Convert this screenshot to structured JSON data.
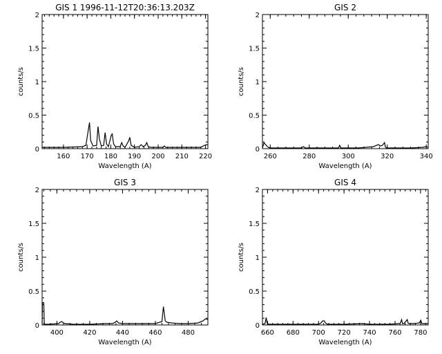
{
  "chart_data": [
    {
      "type": "line",
      "title": "GIS 1 1996-11-12T20:36:13.203Z",
      "xlabel": "Wavelength (A)",
      "ylabel": "counts/s",
      "xlim": [
        151,
        221
      ],
      "ylim": [
        0,
        2
      ],
      "xticks": [
        160,
        170,
        180,
        190,
        200,
        210,
        220
      ],
      "yticks": [
        0,
        0.5,
        1,
        1.5,
        2
      ],
      "x": [
        151,
        160,
        168,
        169.5,
        170.5,
        171.0,
        171.5,
        172.5,
        174,
        174.6,
        175.2,
        176,
        177,
        177.6,
        178.2,
        179,
        180.2,
        180.6,
        181.2,
        182,
        184,
        184.6,
        185.2,
        186,
        187.6,
        188.0,
        188.6,
        190,
        192,
        192.8,
        193.6,
        194.6,
        195.2,
        195.8,
        197,
        202,
        202.6,
        203.2,
        206,
        210,
        214,
        218,
        219.5,
        221
      ],
      "y": [
        0.02,
        0.02,
        0.03,
        0.05,
        0.28,
        0.39,
        0.12,
        0.04,
        0.05,
        0.33,
        0.14,
        0.04,
        0.05,
        0.24,
        0.07,
        0.03,
        0.2,
        0.22,
        0.07,
        0.03,
        0.03,
        0.09,
        0.04,
        0.02,
        0.12,
        0.17,
        0.05,
        0.02,
        0.03,
        0.06,
        0.03,
        0.05,
        0.09,
        0.03,
        0.02,
        0.02,
        0.04,
        0.02,
        0.02,
        0.02,
        0.02,
        0.02,
        0.05,
        0.06
      ]
    },
    {
      "type": "line",
      "title": "GIS 2",
      "xlabel": "Wavelength (A)",
      "ylabel": "counts/s",
      "xlim": [
        256,
        341
      ],
      "ylim": [
        0,
        2
      ],
      "xticks": [
        260,
        280,
        300,
        320,
        340
      ],
      "yticks": [
        0,
        0.5,
        1,
        1.5,
        2
      ],
      "x": [
        256,
        256.8,
        257.3,
        258.2,
        259,
        260,
        268,
        276,
        277,
        278,
        286,
        295,
        295.6,
        296.2,
        300,
        305,
        313,
        314.5,
        315.5,
        316.5,
        317.5,
        318.6,
        319.0,
        319.5,
        325,
        332,
        338,
        340,
        341
      ],
      "y": [
        0.01,
        0.09,
        0.07,
        0.04,
        0.02,
        0.01,
        0.01,
        0.01,
        0.03,
        0.01,
        0.01,
        0.01,
        0.05,
        0.01,
        0.01,
        0.01,
        0.03,
        0.05,
        0.06,
        0.04,
        0.05,
        0.09,
        0.03,
        0.01,
        0.01,
        0.01,
        0.02,
        0.03,
        0.02
      ]
    },
    {
      "type": "line",
      "title": "GIS 3",
      "xlabel": "Wavelength (A)",
      "ylabel": "counts/s",
      "xlim": [
        391,
        492
      ],
      "ylim": [
        0,
        2
      ],
      "xticks": [
        400,
        420,
        440,
        460,
        480
      ],
      "yticks": [
        0,
        0.5,
        1,
        1.5,
        2
      ],
      "x": [
        391,
        391.2,
        392.0,
        392.3,
        395,
        401,
        402,
        403,
        404,
        405,
        410,
        420,
        430,
        434,
        435.5,
        436.5,
        437.5,
        440,
        450,
        455,
        460,
        464,
        464.9,
        465.4,
        466,
        467,
        470,
        475,
        480,
        486,
        489,
        490.5,
        492
      ],
      "y": [
        0.0,
        0.33,
        0.33,
        0.01,
        0.01,
        0.02,
        0.04,
        0.05,
        0.03,
        0.02,
        0.01,
        0.01,
        0.02,
        0.02,
        0.04,
        0.06,
        0.03,
        0.02,
        0.02,
        0.02,
        0.02,
        0.05,
        0.27,
        0.18,
        0.06,
        0.04,
        0.03,
        0.02,
        0.02,
        0.03,
        0.06,
        0.09,
        0.08
      ]
    },
    {
      "type": "line",
      "title": "GIS 4",
      "xlabel": "Wavelength (A)",
      "ylabel": "counts/s",
      "xlim": [
        656,
        786
      ],
      "ylim": [
        0,
        2
      ],
      "xticks": [
        660,
        680,
        700,
        720,
        740,
        760,
        780
      ],
      "yticks": [
        0,
        0.5,
        1,
        1.5,
        2
      ],
      "x": [
        656,
        658,
        659,
        659.6,
        661,
        670,
        685,
        700,
        702,
        703.2,
        704.6,
        705.4,
        707,
        720,
        734,
        740,
        745,
        755,
        764,
        765.2,
        765.8,
        767,
        769.6,
        770.2,
        771,
        775,
        779,
        780.2,
        781,
        786
      ],
      "y": [
        0.01,
        0.02,
        0.11,
        0.03,
        0.01,
        0.01,
        0.01,
        0.01,
        0.03,
        0.06,
        0.06,
        0.03,
        0.01,
        0.01,
        0.02,
        0.01,
        0.01,
        0.01,
        0.02,
        0.08,
        0.02,
        0.02,
        0.08,
        0.03,
        0.02,
        0.02,
        0.03,
        0.07,
        0.02,
        0.02
      ]
    }
  ]
}
